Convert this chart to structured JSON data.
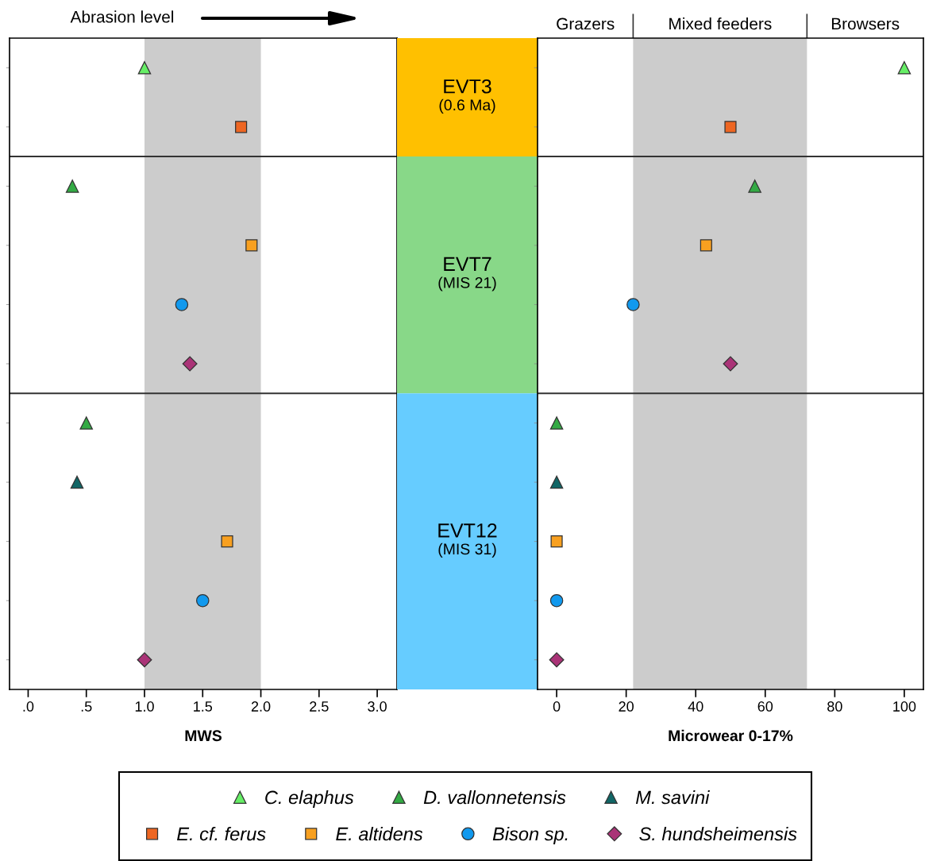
{
  "chart_data": [
    {
      "type": "scatter",
      "orientation": "horizontal",
      "categories": [
        null,
        null,
        null,
        null,
        null,
        null,
        null,
        null,
        null,
        null,
        null
      ],
      "xlim": [
        -0.16,
        3.17
      ],
      "xticks": [
        {
          "value": 0,
          "label": ".0"
        },
        {
          "value": 0.5,
          "label": ".5"
        },
        {
          "value": 1,
          "label": "1.0"
        },
        {
          "value": 1.5,
          "label": "1.5"
        },
        {
          "value": 2,
          "label": "2.0"
        },
        {
          "value": 2.5,
          "label": "2.5"
        },
        {
          "value": 3,
          "label": "3.0"
        }
      ],
      "tick_labels": "x",
      "grid": false,
      "xlabel": "MWS",
      "bands": [
        {
          "axis": "x",
          "from": 1.0,
          "to": 2.0,
          "color": "#cccccc"
        }
      ],
      "annotations": [
        "Abrasion level"
      ],
      "legend": "bottom",
      "series": [
        {
          "name": "C. elaphus",
          "color": "#66ee66",
          "marker": "triangle",
          "values": [
            1.0,
            null,
            null,
            null,
            null,
            null,
            null,
            null,
            null,
            null,
            null
          ]
        },
        {
          "name": "D. vallonnetensis",
          "color": "#33aa44",
          "marker": "triangle",
          "values": [
            null,
            null,
            0.38,
            null,
            null,
            null,
            0.5,
            null,
            null,
            null,
            null
          ]
        },
        {
          "name": "M. savini",
          "color": "#116666",
          "marker": "triangle",
          "values": [
            null,
            null,
            null,
            null,
            null,
            null,
            null,
            0.42,
            null,
            null,
            null
          ]
        },
        {
          "name": "E. cf. ferus",
          "color": "#ee6622",
          "marker": "square",
          "values": [
            null,
            1.83,
            null,
            null,
            null,
            null,
            null,
            null,
            null,
            null,
            null
          ]
        },
        {
          "name": "E. altidens",
          "color": "#f8a020",
          "marker": "square",
          "values": [
            null,
            null,
            null,
            1.92,
            null,
            null,
            null,
            null,
            1.71,
            null,
            null
          ]
        },
        {
          "name": "Bison sp.",
          "color": "#1199ee",
          "marker": "circle",
          "values": [
            null,
            null,
            null,
            null,
            1.32,
            null,
            null,
            null,
            null,
            1.5,
            null
          ]
        },
        {
          "name": "S. hundsheimensis",
          "color": "#aa3377",
          "marker": "diamond",
          "values": [
            null,
            null,
            null,
            null,
            null,
            1.39,
            null,
            null,
            null,
            null,
            1.0
          ]
        }
      ]
    },
    {
      "type": "other",
      "categories": [
        "EVT3",
        "EVT7",
        "EVT12"
      ],
      "annotations": [
        "(0.6 Ma)",
        "(MIS 21)",
        "(MIS 31)"
      ],
      "colors": [
        "#ffc000",
        "#88d888",
        "#66ccff"
      ]
    },
    {
      "type": "scatter",
      "orientation": "horizontal",
      "categories": [
        null,
        null,
        null,
        null,
        null,
        null,
        null,
        null,
        null,
        null,
        null
      ],
      "xlim": [
        -5.5,
        105.5
      ],
      "xticks": [
        0,
        20,
        40,
        60,
        80,
        100
      ],
      "tick_labels": "x",
      "grid": false,
      "xlabel": "Microwear 0-17%",
      "bands": [
        {
          "axis": "x",
          "from": 22,
          "to": 72,
          "color": "#cccccc"
        }
      ],
      "annotations": [
        "Grazers",
        "Mixed feeders",
        "Browsers"
      ],
      "series": [
        {
          "name": "C. elaphus",
          "color": "#66ee66",
          "marker": "triangle",
          "values": [
            100,
            null,
            null,
            null,
            null,
            null,
            null,
            null,
            null,
            null,
            null
          ]
        },
        {
          "name": "D. vallonnetensis",
          "color": "#33aa44",
          "marker": "triangle",
          "values": [
            null,
            null,
            57,
            null,
            null,
            null,
            0,
            null,
            null,
            null,
            null
          ]
        },
        {
          "name": "M. savini",
          "color": "#116666",
          "marker": "triangle",
          "values": [
            null,
            null,
            null,
            null,
            null,
            null,
            null,
            0,
            null,
            null,
            null
          ]
        },
        {
          "name": "E. cf. ferus",
          "color": "#ee6622",
          "marker": "square",
          "values": [
            null,
            50,
            null,
            null,
            null,
            null,
            null,
            null,
            null,
            null,
            null
          ]
        },
        {
          "name": "E. altidens",
          "color": "#f8a020",
          "marker": "square",
          "values": [
            null,
            null,
            null,
            43,
            null,
            null,
            null,
            null,
            0,
            null,
            null
          ]
        },
        {
          "name": "Bison sp.",
          "color": "#1199ee",
          "marker": "circle",
          "values": [
            null,
            null,
            null,
            null,
            22,
            null,
            null,
            null,
            null,
            0,
            null
          ]
        },
        {
          "name": "S. hundsheimensis",
          "color": "#aa3377",
          "marker": "diamond",
          "values": [
            null,
            null,
            null,
            null,
            null,
            50,
            null,
            null,
            null,
            null,
            0
          ]
        }
      ]
    }
  ]
}
